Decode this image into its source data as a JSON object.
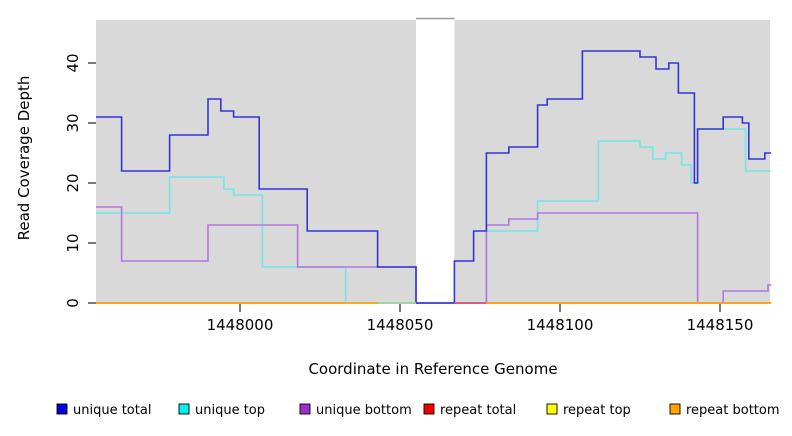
{
  "chart_data": {
    "type": "line",
    "step": true,
    "title": "",
    "xlabel": "Coordinate in Reference Genome",
    "ylabel": "Read Coverage Depth",
    "xlim": [
      1447955,
      1448166
    ],
    "ylim": [
      0,
      47
    ],
    "xticks": [
      1448000,
      1448050,
      1448100,
      1448150
    ],
    "yticks": [
      0,
      10,
      20,
      30,
      40
    ],
    "grid": false,
    "plot_bg": "#D9D9D9",
    "gap_region": {
      "from": 1448055,
      "to": 1448067,
      "color": "#FFFFFF",
      "border": "#999999"
    },
    "legend_position": "bottom",
    "series": [
      {
        "name": "unique total",
        "color": "#3535D6",
        "legend_color": "#0000DD",
        "end": 1448166,
        "steps": [
          [
            1447955,
            31
          ],
          [
            1447963,
            22
          ],
          [
            1447978,
            28
          ],
          [
            1447990,
            34
          ],
          [
            1447994,
            32
          ],
          [
            1447998,
            31
          ],
          [
            1448006,
            19
          ],
          [
            1448021,
            12
          ],
          [
            1448043,
            6
          ],
          [
            1448055,
            0
          ],
          [
            1448067,
            7
          ],
          [
            1448073,
            12
          ],
          [
            1448077,
            25
          ],
          [
            1448084,
            26
          ],
          [
            1448093,
            33
          ],
          [
            1448096,
            34
          ],
          [
            1448107,
            42
          ],
          [
            1448125,
            41
          ],
          [
            1448130,
            39
          ],
          [
            1448134,
            40
          ],
          [
            1448137,
            35
          ],
          [
            1448142,
            20
          ],
          [
            1448143,
            29
          ],
          [
            1448151,
            31
          ],
          [
            1448157,
            30
          ],
          [
            1448159,
            24
          ],
          [
            1448164,
            25
          ]
        ]
      },
      {
        "name": "unique top",
        "color": "#72E6E8",
        "legend_color": "#00EEEE",
        "end": 1448166,
        "steps": [
          [
            1447955,
            15
          ],
          [
            1447978,
            21
          ],
          [
            1447995,
            19
          ],
          [
            1447998,
            18
          ],
          [
            1448007,
            6
          ],
          [
            1448033,
            0
          ],
          [
            1448077,
            12
          ],
          [
            1448093,
            17
          ],
          [
            1448112,
            27
          ],
          [
            1448125,
            26
          ],
          [
            1448129,
            24
          ],
          [
            1448133,
            25
          ],
          [
            1448138,
            23
          ],
          [
            1448141,
            20
          ],
          [
            1448143,
            29
          ],
          [
            1448158,
            22
          ]
        ]
      },
      {
        "name": "unique bottom",
        "color": "#B475E0",
        "legend_color": "#9932CC",
        "end": 1448166,
        "steps": [
          [
            1447955,
            16
          ],
          [
            1447963,
            7
          ],
          [
            1447990,
            13
          ],
          [
            1448018,
            6
          ],
          [
            1448055,
            0
          ],
          [
            1448077,
            13
          ],
          [
            1448084,
            14
          ],
          [
            1448093,
            15
          ],
          [
            1448143,
            0
          ],
          [
            1448151,
            2
          ],
          [
            1448165,
            3
          ]
        ]
      },
      {
        "name": "repeat total",
        "color": "#DD5577",
        "legend_color": "#EE0000",
        "end": 1448166,
        "steps": [
          [
            1447955,
            0
          ]
        ]
      },
      {
        "name": "repeat top",
        "color": "#9CD89C",
        "legend_color": "#FFFF00",
        "end": 1448166,
        "steps": [
          [
            1447955,
            0
          ]
        ]
      },
      {
        "name": "repeat bottom",
        "color": "#FFA518",
        "legend_color": "#FFA500",
        "end": 1448166,
        "steps": [
          [
            1447955,
            0
          ]
        ]
      }
    ],
    "baseline_segments": [
      {
        "color": "#FFA518",
        "from": 1447955,
        "to": 1448043
      },
      {
        "color": "#9CD89C",
        "from": 1448043,
        "to": 1448055
      },
      {
        "color": "#DD5577",
        "from": 1448067,
        "to": 1448077
      },
      {
        "color": "#FFA518",
        "from": 1448077,
        "to": 1448166
      }
    ],
    "legend": [
      {
        "label": "unique total",
        "color": "#0000DD"
      },
      {
        "label": "unique top",
        "color": "#00EEEE"
      },
      {
        "label": "unique bottom",
        "color": "#9932CC"
      },
      {
        "label": "repeat total",
        "color": "#EE0000"
      },
      {
        "label": "repeat top",
        "color": "#FFFF00"
      },
      {
        "label": "repeat bottom",
        "color": "#FFA500"
      }
    ]
  }
}
